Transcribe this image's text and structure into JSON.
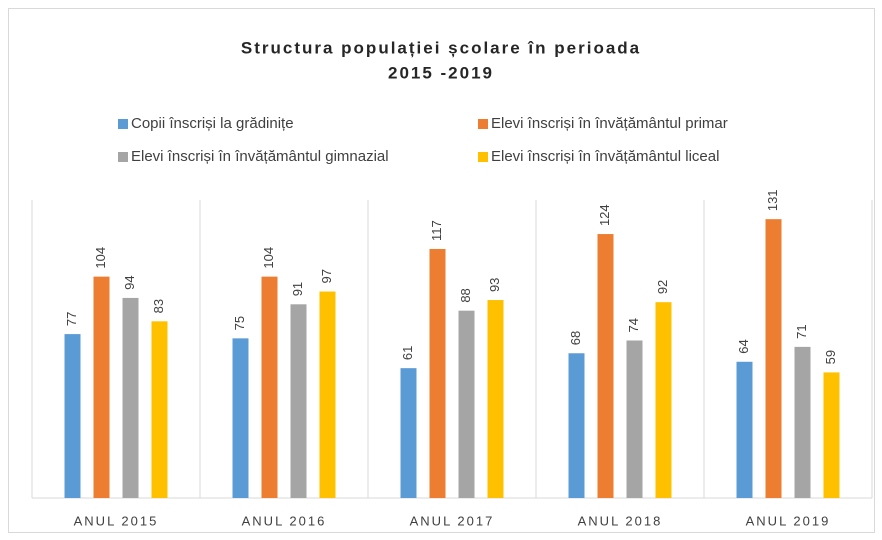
{
  "chart_data": {
    "type": "bar",
    "title": [
      "Structura populației școlare în perioada",
      "2015 -2019"
    ],
    "categories": [
      "ANUL 2015",
      "ANUL 2016",
      "ANUL 2017",
      "ANUL 2018",
      "ANUL 2019"
    ],
    "series": [
      {
        "name": "Copii înscriși la grădinițe",
        "color": "#5b9bd5",
        "values": [
          77,
          75,
          61,
          68,
          64
        ]
      },
      {
        "name": "Elevi înscriși în învățământul primar",
        "color": "#ed7d31",
        "values": [
          104,
          104,
          117,
          124,
          131
        ]
      },
      {
        "name": "Elevi înscriși în învățământul gimnazial",
        "color": "#a5a5a5",
        "values": [
          94,
          91,
          88,
          74,
          71
        ]
      },
      {
        "name": "Elevi înscriși în învățământul liceal",
        "color": "#ffc000",
        "values": [
          83,
          97,
          93,
          92,
          59
        ]
      }
    ],
    "ylim": [
      0,
      140
    ]
  }
}
